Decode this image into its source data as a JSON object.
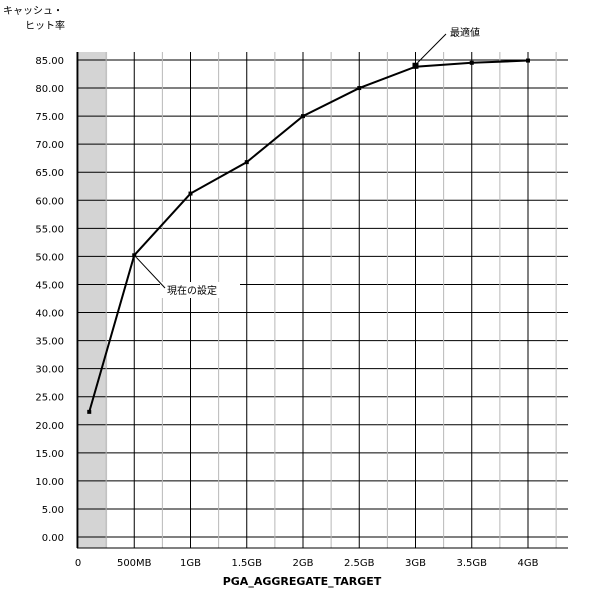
{
  "chart_data": {
    "type": "line",
    "title": "",
    "ylabel_lines": [
      "キャッシュ・",
      "ヒット率"
    ],
    "xlabel": "PGA_AGGREGATE_TARGET",
    "x_ticks": [
      {
        "label": "0",
        "gb": 0
      },
      {
        "label": "500MB",
        "gb": 0.5
      },
      {
        "label": "1GB",
        "gb": 1
      },
      {
        "label": "1.5GB",
        "gb": 1.5
      },
      {
        "label": "2GB",
        "gb": 2
      },
      {
        "label": "2.5GB",
        "gb": 2.5
      },
      {
        "label": "3GB",
        "gb": 3
      },
      {
        "label": "3.5GB",
        "gb": 3.5
      },
      {
        "label": "4GB",
        "gb": 4
      }
    ],
    "y_ticks": [
      "0.00",
      "5.00",
      "10.00",
      "15.00",
      "20.00",
      "25.00",
      "30.00",
      "35.00",
      "40.00",
      "45.00",
      "50.00",
      "55.00",
      "60.00",
      "65.00",
      "70.00",
      "75.00",
      "80.00",
      "85.00"
    ],
    "ylim": [
      0,
      85
    ],
    "x_axis_gb_range": [
      0,
      4.25
    ],
    "shaded_region_gb": [
      0,
      0.25
    ],
    "grid": true,
    "series": [
      {
        "points": [
          {
            "x_gb": 0.1,
            "y": 22.3
          },
          {
            "x_gb": 0.5,
            "y": 50.2
          },
          {
            "x_gb": 1.0,
            "y": 61.2
          },
          {
            "x_gb": 1.5,
            "y": 66.8
          },
          {
            "x_gb": 2.0,
            "y": 75.0
          },
          {
            "x_gb": 2.5,
            "y": 80.0
          },
          {
            "x_gb": 3.0,
            "y": 83.8
          },
          {
            "x_gb": 3.5,
            "y": 84.5
          },
          {
            "x_gb": 4.0,
            "y": 84.9
          }
        ]
      }
    ],
    "annotations": [
      {
        "label": "現在の設定",
        "x_gb": 0.5,
        "y": 50.2
      },
      {
        "label": "最適値",
        "x_gb": 3.0,
        "y": 83.8
      }
    ]
  }
}
